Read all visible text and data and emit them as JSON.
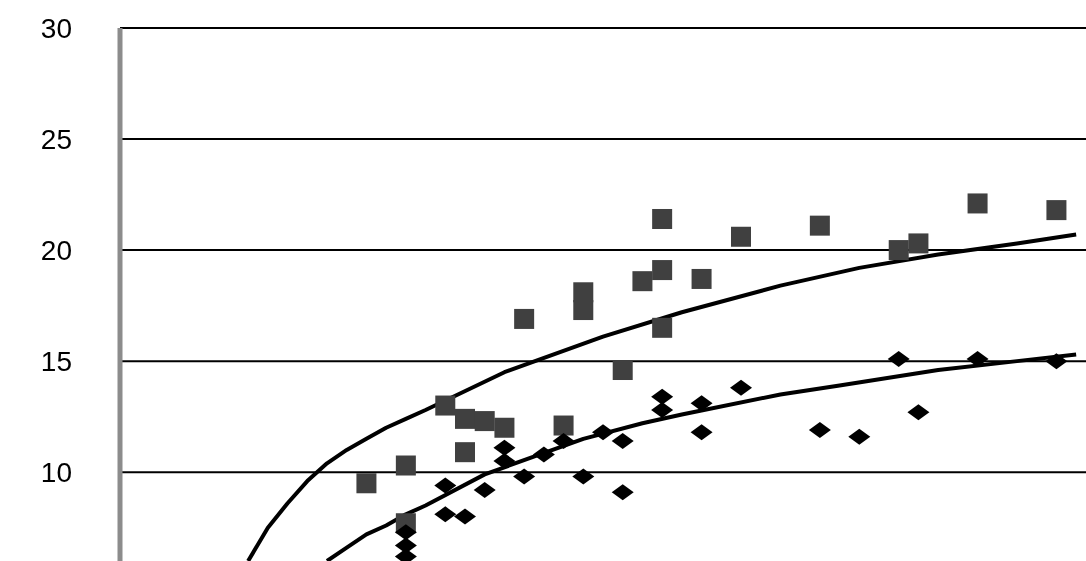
{
  "chart_data": {
    "type": "scatter",
    "ylim": [
      6,
      30
    ],
    "yticks": [
      10,
      15,
      20,
      25,
      30
    ],
    "tick_labels": "y",
    "grid": "y",
    "categories": [
      null,
      null,
      null,
      null,
      null,
      null,
      null,
      null,
      null,
      null,
      null,
      null,
      null,
      null,
      null,
      null,
      null,
      null,
      null,
      null,
      null,
      null,
      null,
      null,
      null,
      null,
      null,
      null,
      null,
      null,
      null,
      null,
      null,
      null,
      null,
      null,
      null,
      null,
      null,
      null,
      null,
      null,
      null,
      null,
      null,
      null,
      null,
      null,
      null
    ],
    "series": [
      {
        "marker": "square",
        "color": "#404040",
        "values": [
          null,
          null,
          null,
          null,
          null,
          null,
          null,
          null,
          null,
          null,
          null,
          null,
          9.5,
          null,
          10.3,
          null,
          13.0,
          12.4,
          12.3,
          12.0,
          16.9,
          null,
          12.1,
          18.1,
          null,
          14.6,
          18.6,
          21.4,
          null,
          18.7,
          null,
          20.6,
          null,
          null,
          null,
          21.1,
          null,
          null,
          null,
          20.0,
          20.3,
          null,
          null,
          22.1,
          null,
          null,
          null,
          21.8,
          null
        ]
      },
      {
        "marker": "square",
        "color": "#404040",
        "values": [
          null,
          null,
          null,
          null,
          null,
          null,
          null,
          null,
          null,
          null,
          null,
          null,
          null,
          null,
          7.7,
          null,
          null,
          10.9,
          null,
          null,
          null,
          null,
          null,
          17.3,
          null,
          null,
          null,
          19.1,
          null,
          null,
          null,
          null,
          null,
          null,
          null,
          null,
          null,
          null,
          null,
          null,
          null,
          null,
          null,
          null,
          null,
          null,
          null,
          null,
          null
        ]
      },
      {
        "marker": "square",
        "color": "#404040",
        "values": [
          null,
          null,
          null,
          null,
          null,
          null,
          null,
          null,
          null,
          null,
          null,
          null,
          null,
          null,
          null,
          null,
          null,
          null,
          null,
          null,
          null,
          null,
          null,
          null,
          null,
          null,
          null,
          16.5,
          null,
          null,
          null,
          null,
          null,
          null,
          null,
          null,
          null,
          null,
          null,
          null,
          null,
          null,
          null,
          null,
          null,
          null,
          null,
          null,
          null
        ]
      },
      {
        "marker": "diamond",
        "color": "#000000",
        "values": [
          null,
          null,
          null,
          null,
          null,
          null,
          null,
          null,
          null,
          null,
          null,
          null,
          null,
          null,
          7.3,
          null,
          9.4,
          8.0,
          9.2,
          11.1,
          9.8,
          10.8,
          11.4,
          9.8,
          11.8,
          11.4,
          null,
          13.4,
          null,
          13.1,
          null,
          13.8,
          null,
          null,
          null,
          11.9,
          null,
          11.6,
          null,
          15.1,
          12.7,
          null,
          null,
          15.1,
          null,
          null,
          null,
          15.0,
          null
        ]
      },
      {
        "marker": "diamond",
        "color": "#000000",
        "values": [
          null,
          null,
          null,
          null,
          null,
          null,
          null,
          null,
          null,
          null,
          null,
          null,
          null,
          null,
          6.7,
          null,
          8.1,
          null,
          null,
          10.5,
          null,
          null,
          null,
          null,
          null,
          9.1,
          null,
          12.8,
          null,
          11.8,
          null,
          null,
          null,
          null,
          null,
          null,
          null,
          null,
          null,
          null,
          null,
          null,
          null,
          null,
          null,
          null,
          null,
          null,
          null
        ]
      },
      {
        "marker": "diamond",
        "color": "#000000",
        "values": [
          null,
          null,
          null,
          null,
          null,
          null,
          null,
          null,
          null,
          null,
          null,
          null,
          null,
          null,
          6.2,
          null,
          null,
          null,
          null,
          null,
          null,
          null,
          null,
          null,
          null,
          null,
          null,
          null,
          null,
          null,
          null,
          null,
          null,
          null,
          null,
          null,
          null,
          null,
          null,
          null,
          null,
          null,
          null,
          null,
          null,
          null,
          null,
          null,
          null
        ]
      },
      {
        "type": "line",
        "marker": "none",
        "color": "#000000",
        "values": [
          null,
          null,
          null,
          null,
          null,
          null,
          6.0,
          7.5,
          8.6,
          9.6,
          10.4,
          11.0,
          11.5,
          12.0,
          12.4,
          12.8,
          null,
          null,
          null,
          14.5,
          null,
          null,
          null,
          null,
          16.1,
          null,
          null,
          null,
          17.2,
          null,
          null,
          null,
          null,
          18.4,
          null,
          null,
          null,
          19.2,
          null,
          null,
          null,
          19.8,
          null,
          null,
          null,
          20.3,
          null,
          null,
          20.7
        ]
      },
      {
        "type": "line",
        "marker": "none",
        "color": "#000000",
        "values": [
          null,
          null,
          null,
          null,
          null,
          null,
          null,
          null,
          null,
          null,
          6.0,
          6.6,
          7.2,
          7.6,
          8.1,
          8.5,
          null,
          null,
          9.9,
          null,
          null,
          null,
          null,
          11.5,
          null,
          null,
          12.2,
          null,
          12.6,
          null,
          null,
          null,
          null,
          13.5,
          null,
          null,
          13.9,
          null,
          null,
          null,
          null,
          14.6,
          null,
          null,
          null,
          15.0,
          null,
          null,
          15.3
        ]
      }
    ]
  }
}
